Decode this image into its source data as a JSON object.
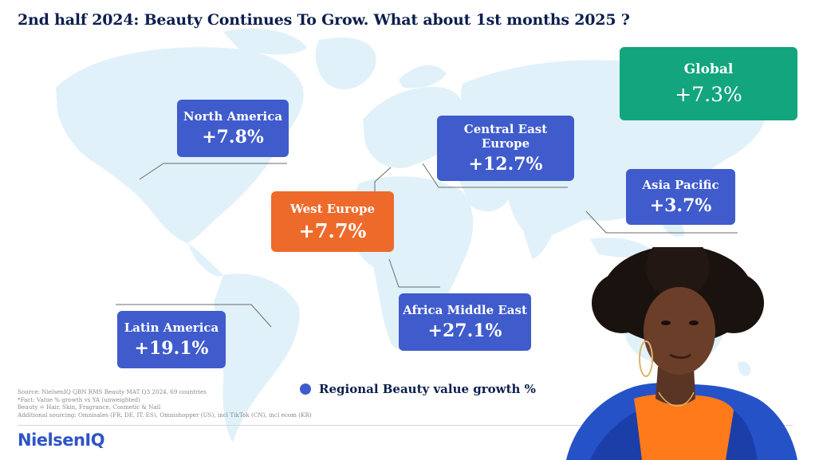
{
  "title": "2nd half 2024: Beauty Continues To Grow. What about 1st months 2025 ?",
  "regions": [
    {
      "name": "North America",
      "value": "+7.8%",
      "color": "#3f5bcc"
    },
    {
      "name": "Central East Europe",
      "value": "+12.7%",
      "color": "#3f5bcc"
    },
    {
      "name": "West Europe",
      "value": "+7.7%",
      "color": "#ee6a2b"
    },
    {
      "name": "Asia Pacific",
      "value": "+3.7%",
      "color": "#3f5bcc"
    },
    {
      "name": "Africa Middle East",
      "value": "+27.1%",
      "color": "#3f5bcc"
    },
    {
      "name": "Latin America",
      "value": "+19.1%",
      "color": "#3f5bcc"
    },
    {
      "name": "Global",
      "value": "+7.3%",
      "color": "#12a57e"
    }
  ],
  "legend": "Regional Beauty value growth %",
  "source_lines": [
    "Source: NielsenIQ QBN RMS Beauty MAT Q3 2024, 69 countries",
    "*Fact: Value % growth vs YA (unweighted)",
    "Beauty = Hair, Skin, Fragrance, Cosmetic & Nail",
    "Additional sourcing: Omnisales (FR, DE, IT, ES), Omnishopper (US), incl TikTok (CN), incl ecom (KR)"
  ],
  "logo": "NielsenIQ",
  "icons": {
    "legend": "blue-dot-icon",
    "photo": "woman-photo-icon"
  }
}
